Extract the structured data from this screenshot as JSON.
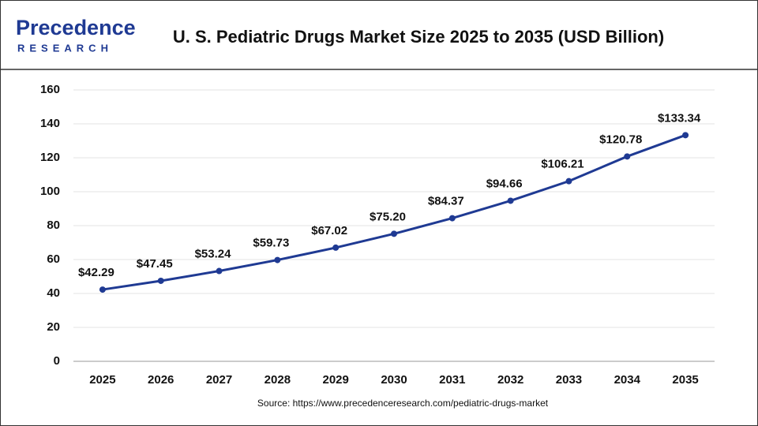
{
  "logo": {
    "name": "Precedence",
    "tagline": "RESEARCH"
  },
  "chart_data": {
    "type": "line",
    "title": "U. S. Pediatric Drugs Market Size 2025 to 2035 (USD Billion)",
    "source": "Source: https://www.precedenceresearch.com/pediatric-drugs-market",
    "categories": [
      "2025",
      "2026",
      "2027",
      "2028",
      "2029",
      "2030",
      "2031",
      "2032",
      "2033",
      "2034",
      "2035"
    ],
    "values": [
      42.29,
      47.45,
      53.24,
      59.73,
      67.02,
      75.2,
      84.37,
      94.66,
      106.21,
      120.78,
      133.34
    ],
    "value_labels": [
      "$42.29",
      "$47.45",
      "$53.24",
      "$59.73",
      "$67.02",
      "$75.20",
      "$84.37",
      "$94.66",
      "$106.21",
      "$120.78",
      "$133.34"
    ],
    "color": "#1f3a93",
    "ylim": [
      0,
      160
    ],
    "yticks": [
      0,
      20,
      40,
      60,
      80,
      100,
      120,
      140,
      160
    ],
    "grid": true
  }
}
